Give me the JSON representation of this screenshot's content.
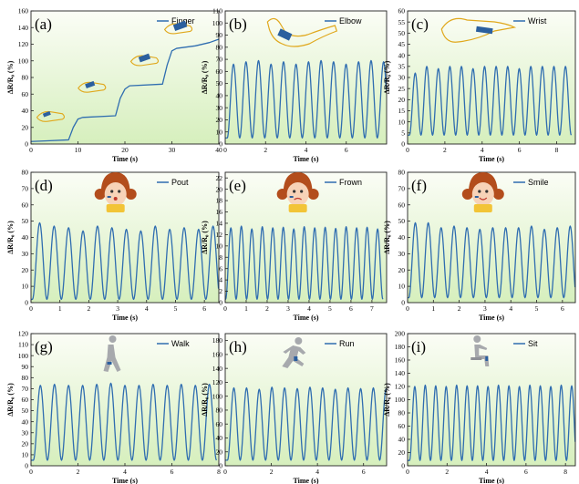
{
  "colors": {
    "line": "#2f6db0",
    "plot_bg_top": "#fbfdf6",
    "plot_bg_bottom": "#d6efbd",
    "axis": "#222222",
    "icon_outline": "#e0a81c",
    "icon_band": "#2b5f9e",
    "person": "#a7a9ad",
    "face_skin": "#f7d3b8",
    "hair": "#b34d1c"
  },
  "chart_data": [
    {
      "type": "line",
      "panel": "(a)",
      "series_name": "Finger",
      "xlabel": "Time (s)",
      "ylabel": "ΔR/R₀ (%)",
      "xlim": [
        0,
        40
      ],
      "ylim": [
        0,
        160
      ],
      "xticks": [
        0,
        10,
        20,
        30,
        40
      ],
      "yticks": [
        0,
        20,
        40,
        60,
        80,
        100,
        120,
        140,
        160
      ],
      "icon": "finger-hand-icon",
      "grid": false,
      "legend": "top-right",
      "x": [
        0,
        4,
        8,
        9,
        10,
        11,
        18,
        19,
        20,
        21,
        28,
        29,
        30,
        31,
        35,
        38,
        40
      ],
      "y": [
        3,
        4,
        5,
        20,
        30,
        32,
        34,
        55,
        66,
        70,
        72,
        95,
        112,
        115,
        118,
        122,
        126
      ]
    },
    {
      "type": "line",
      "panel": "(b)",
      "series_name": "Elbow",
      "xlabel": "Time (s)",
      "ylabel": "ΔR/R₀ (%)",
      "xlim": [
        0,
        8
      ],
      "ylim": [
        0,
        110
      ],
      "xticks": [
        0,
        2,
        4,
        6
      ],
      "yticks": [
        0,
        10,
        20,
        30,
        40,
        50,
        60,
        70,
        80,
        90,
        100,
        110
      ],
      "icon": "elbow-arm-icon",
      "grid": false,
      "legend": "top-right",
      "periodic": {
        "start": 0.1,
        "period": 0.62,
        "baseline": 5,
        "peaks": [
          66,
          68,
          69,
          66,
          68,
          66,
          68,
          69,
          68,
          66,
          68,
          69,
          68
        ]
      }
    },
    {
      "type": "line",
      "panel": "(c)",
      "series_name": "Wrist",
      "xlabel": "Time (s)",
      "ylabel": "ΔR/R₀ (%)",
      "xlim": [
        0,
        9
      ],
      "ylim": [
        0,
        60
      ],
      "xticks": [
        0,
        2,
        4,
        6,
        8
      ],
      "yticks": [
        0,
        5,
        10,
        15,
        20,
        25,
        30,
        35,
        40,
        45,
        50,
        55,
        60
      ],
      "icon": "wrist-hand-icon",
      "grid": false,
      "legend": "top-right",
      "periodic": {
        "start": 0.1,
        "period": 0.62,
        "baseline": 4,
        "peaks": [
          32,
          35,
          34,
          35,
          35,
          34,
          35,
          35,
          35,
          34,
          35,
          35,
          35,
          35
        ]
      }
    },
    {
      "type": "line",
      "panel": "(d)",
      "series_name": "Pout",
      "xlabel": "Time (s)",
      "ylabel": "ΔR/R₀ (%)",
      "xlim": [
        0,
        6.5
      ],
      "ylim": [
        0,
        80
      ],
      "xticks": [
        0,
        1,
        2,
        3,
        4,
        5,
        6
      ],
      "yticks": [
        0,
        10,
        20,
        30,
        40,
        50,
        60,
        70,
        80
      ],
      "icon": "girl-pout-face-icon",
      "grid": false,
      "legend": "top-right",
      "periodic": {
        "start": 0.05,
        "period": 0.5,
        "baseline": 2,
        "peaks": [
          49,
          47,
          46,
          44,
          47,
          46,
          45,
          44,
          47,
          45,
          46,
          45,
          47
        ]
      }
    },
    {
      "type": "line",
      "panel": "(e)",
      "series_name": "Frown",
      "xlabel": "Time (s)",
      "ylabel": "ΔR/R₀ (%)",
      "xlim": [
        0,
        7.7
      ],
      "ylim": [
        0,
        23
      ],
      "xticks": [
        0,
        1,
        2,
        3,
        4,
        5,
        6,
        7
      ],
      "yticks": [
        0,
        2,
        4,
        6,
        8,
        10,
        12,
        14,
        16,
        18,
        20,
        22
      ],
      "icon": "girl-frown-face-icon",
      "grid": false,
      "legend": "top-right",
      "periodic": {
        "start": 0.02,
        "period": 0.5,
        "baseline": 0.6,
        "peaks": [
          13.2,
          13.5,
          13.0,
          13.4,
          13.2,
          13.3,
          13.0,
          13.4,
          13.2,
          13.3,
          13.1,
          13.4,
          13.2,
          13.3,
          13.0
        ]
      }
    },
    {
      "type": "line",
      "panel": "(f)",
      "series_name": "Smile",
      "xlabel": "Time (s)",
      "ylabel": "ΔR/R₀ (%)",
      "xlim": [
        0,
        6.5
      ],
      "ylim": [
        0,
        80
      ],
      "xticks": [
        0,
        1,
        2,
        3,
        4,
        5,
        6
      ],
      "yticks": [
        0,
        10,
        20,
        30,
        40,
        50,
        60,
        70,
        80
      ],
      "icon": "girl-smile-face-icon",
      "grid": false,
      "legend": "top-right",
      "periodic": {
        "start": 0.05,
        "period": 0.5,
        "baseline": 3,
        "peaks": [
          49,
          49,
          46,
          47,
          46,
          45,
          46,
          46,
          46,
          47,
          45,
          46,
          47
        ]
      }
    },
    {
      "type": "line",
      "panel": "(g)",
      "series_name": "Walk",
      "xlabel": "Time (s)",
      "ylabel": "ΔR/R₀ (%)",
      "xlim": [
        0,
        8
      ],
      "ylim": [
        0,
        120
      ],
      "xticks": [
        0,
        2,
        4,
        6,
        8
      ],
      "yticks": [
        0,
        10,
        20,
        30,
        40,
        50,
        60,
        70,
        80,
        90,
        100,
        110,
        120
      ],
      "icon": "person-walking-icon",
      "grid": false,
      "legend": "top-right",
      "periodic": {
        "start": 0.1,
        "period": 0.6,
        "baseline": 5,
        "peaks": [
          73,
          74,
          73,
          73,
          74,
          75,
          73,
          73,
          74,
          73,
          74,
          73,
          74
        ]
      }
    },
    {
      "type": "line",
      "panel": "(h)",
      "series_name": "Run",
      "xlabel": "Time (s)",
      "ylabel": "ΔR/R₀ (%)",
      "xlim": [
        0,
        7
      ],
      "ylim": [
        0,
        190
      ],
      "xticks": [
        0,
        2,
        4,
        6
      ],
      "yticks": [
        0,
        20,
        40,
        60,
        80,
        100,
        120,
        140,
        160,
        180
      ],
      "icon": "person-running-icon",
      "grid": false,
      "legend": "top-right",
      "periodic": {
        "start": 0.1,
        "period": 0.55,
        "baseline": 8,
        "peaks": [
          112,
          112,
          110,
          113,
          112,
          111,
          113,
          112,
          110,
          112,
          111,
          112,
          110
        ]
      }
    },
    {
      "type": "line",
      "panel": "(i)",
      "series_name": "Sit",
      "xlabel": "Time (s)",
      "ylabel": "ΔR/R₀ (%)",
      "xlim": [
        0,
        8.5
      ],
      "ylim": [
        0,
        200
      ],
      "xticks": [
        0,
        2,
        4,
        6,
        8
      ],
      "yticks": [
        0,
        20,
        40,
        60,
        80,
        100,
        120,
        140,
        160,
        180,
        200
      ],
      "icon": "person-sitting-icon",
      "grid": false,
      "legend": "top-right",
      "periodic": {
        "start": 0.1,
        "period": 0.53,
        "baseline": 8,
        "peaks": [
          120,
          122,
          121,
          120,
          122,
          121,
          121,
          120,
          122,
          121,
          120,
          122,
          121,
          120,
          122,
          121
        ]
      }
    }
  ]
}
